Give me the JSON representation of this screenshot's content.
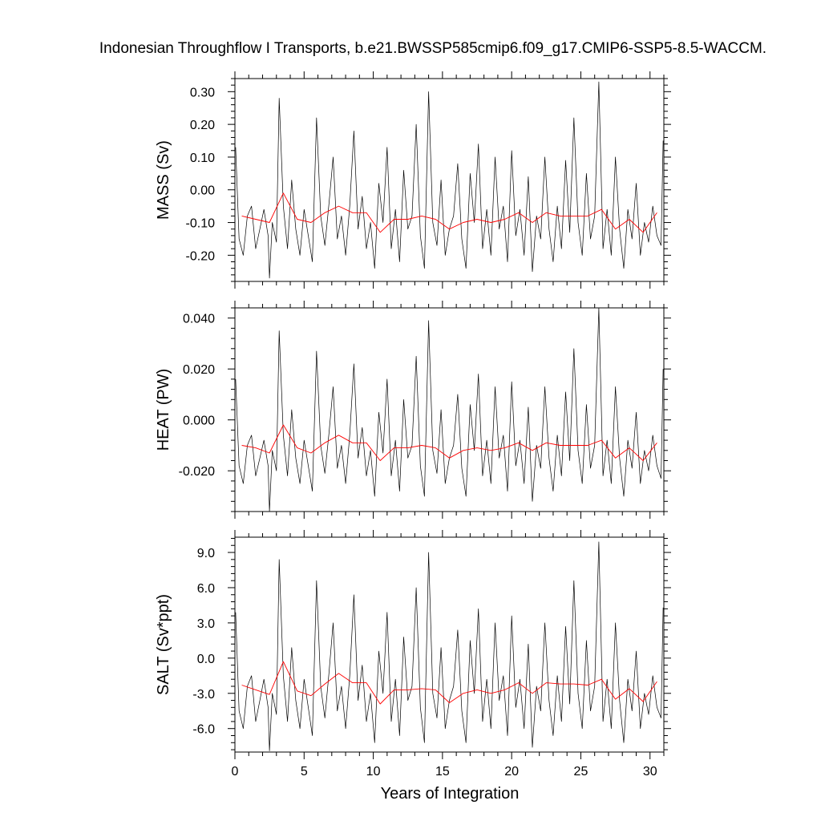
{
  "title": "Indonesian Throughflow I Transports, b.e21.BWSSP585cmip6.f09_g17.CMIP6-SSP5-8.5-WACCM.",
  "xlabel": "Years of Integration",
  "colors": {
    "monthly": "#000000",
    "annual": "#ff0000"
  },
  "chart_data": [
    {
      "type": "line",
      "ylabel": "MASS (Sv)",
      "xlim": [
        0,
        31
      ],
      "ylim": [
        -0.28,
        0.34
      ],
      "xticks": [
        0,
        5,
        10,
        15,
        20,
        25,
        30
      ],
      "yticks": [
        -0.2,
        -0.1,
        0.0,
        0.1,
        0.2,
        0.3
      ],
      "ytick_labels": [
        "-0.20",
        "-0.10",
        "0.00",
        "0.10",
        "0.20",
        "0.30"
      ],
      "xtick_labels": [
        "",
        "",
        "",
        "",
        "",
        "",
        ""
      ],
      "series": [
        {
          "kind": "monthly",
          "x": [
            0.05,
            0.3,
            0.6,
            0.9,
            1.2,
            1.5,
            1.8,
            2.1,
            2.4,
            2.5,
            2.7,
            3.0,
            3.2,
            3.5,
            3.8,
            4.1,
            4.4,
            4.7,
            5.0,
            5.3,
            5.6,
            5.9,
            6.2,
            6.5,
            6.8,
            7.1,
            7.4,
            7.7,
            8.0,
            8.3,
            8.6,
            8.9,
            9.2,
            9.5,
            9.8,
            10.1,
            10.4,
            10.7,
            11.0,
            11.3,
            11.6,
            11.9,
            12.2,
            12.5,
            12.8,
            13.1,
            13.4,
            13.7,
            14.0,
            14.3,
            14.6,
            14.9,
            15.2,
            15.5,
            15.8,
            16.1,
            16.4,
            16.7,
            17.0,
            17.3,
            17.6,
            17.9,
            18.2,
            18.5,
            18.8,
            19.1,
            19.4,
            19.7,
            20.0,
            20.3,
            20.6,
            20.9,
            21.2,
            21.5,
            21.8,
            22.1,
            22.4,
            22.7,
            23.0,
            23.3,
            23.6,
            23.9,
            24.2,
            24.5,
            24.8,
            25.1,
            25.4,
            25.7,
            26.0,
            26.3,
            26.6,
            26.9,
            27.2,
            27.5,
            27.8,
            28.1,
            28.4,
            28.7,
            29.0,
            29.3,
            29.6,
            29.9,
            30.2,
            30.5,
            30.8,
            30.95
          ],
          "y": [
            0.13,
            -0.15,
            -0.2,
            -0.08,
            -0.05,
            -0.18,
            -0.12,
            -0.06,
            -0.14,
            -0.27,
            -0.1,
            -0.16,
            0.28,
            -0.05,
            -0.18,
            0.03,
            -0.12,
            -0.2,
            -0.06,
            -0.14,
            -0.22,
            0.22,
            -0.08,
            -0.17,
            -0.04,
            0.1,
            -0.15,
            -0.08,
            -0.2,
            -0.05,
            0.18,
            -0.12,
            -0.02,
            -0.18,
            -0.1,
            -0.24,
            0.02,
            -0.1,
            0.13,
            -0.18,
            -0.06,
            -0.22,
            0.06,
            -0.12,
            -0.08,
            0.2,
            -0.14,
            -0.24,
            0.3,
            -0.1,
            -0.17,
            0.03,
            -0.2,
            -0.12,
            -0.08,
            0.08,
            -0.15,
            -0.24,
            0.05,
            -0.1,
            0.14,
            -0.18,
            -0.06,
            -0.2,
            0.1,
            -0.12,
            -0.05,
            -0.22,
            0.12,
            -0.14,
            -0.06,
            -0.2,
            0.04,
            -0.25,
            -0.08,
            -0.15,
            0.1,
            -0.12,
            -0.22,
            -0.05,
            -0.18,
            0.09,
            -0.13,
            0.22,
            -0.1,
            -0.2,
            0.05,
            -0.15,
            -0.08,
            0.33,
            -0.18,
            -0.06,
            -0.2,
            0.1,
            -0.12,
            -0.24,
            -0.06,
            -0.15,
            0.02,
            -0.2,
            -0.1,
            -0.16,
            -0.05,
            -0.14,
            -0.17,
            0.15
          ]
        },
        {
          "kind": "annual",
          "x": [
            0.5,
            1.5,
            2.5,
            3.5,
            4.5,
            5.5,
            6.5,
            7.5,
            8.5,
            9.5,
            10.5,
            11.5,
            12.5,
            13.5,
            14.5,
            15.5,
            16.5,
            17.5,
            18.5,
            19.5,
            20.5,
            21.5,
            22.5,
            23.5,
            24.5,
            25.5,
            26.5,
            27.5,
            28.5,
            29.5,
            30.5
          ],
          "y": [
            -0.08,
            -0.09,
            -0.1,
            -0.01,
            -0.09,
            -0.1,
            -0.07,
            -0.05,
            -0.07,
            -0.07,
            -0.13,
            -0.09,
            -0.09,
            -0.08,
            -0.09,
            -0.12,
            -0.1,
            -0.09,
            -0.1,
            -0.09,
            -0.07,
            -0.1,
            -0.07,
            -0.08,
            -0.08,
            -0.08,
            -0.06,
            -0.12,
            -0.09,
            -0.13,
            -0.07
          ]
        }
      ]
    },
    {
      "type": "line",
      "ylabel": "HEAT (PW)",
      "xlim": [
        0,
        31
      ],
      "ylim": [
        -0.036,
        0.044
      ],
      "xticks": [
        0,
        5,
        10,
        15,
        20,
        25,
        30
      ],
      "yticks": [
        -0.02,
        0.0,
        0.02,
        0.04
      ],
      "ytick_labels": [
        "-0.020",
        "0.000",
        "0.020",
        "0.040"
      ],
      "xtick_labels": [
        "",
        "",
        "",
        "",
        "",
        "",
        ""
      ],
      "series": [
        {
          "kind": "monthly",
          "x": [
            0.05,
            0.3,
            0.6,
            0.9,
            1.2,
            1.5,
            1.8,
            2.1,
            2.4,
            2.5,
            2.7,
            3.0,
            3.2,
            3.5,
            3.8,
            4.1,
            4.4,
            4.7,
            5.0,
            5.3,
            5.6,
            5.9,
            6.2,
            6.5,
            6.8,
            7.1,
            7.4,
            7.7,
            8.0,
            8.3,
            8.6,
            8.9,
            9.2,
            9.5,
            9.8,
            10.1,
            10.4,
            10.7,
            11.0,
            11.3,
            11.6,
            11.9,
            12.2,
            12.5,
            12.8,
            13.1,
            13.4,
            13.7,
            14.0,
            14.3,
            14.6,
            14.9,
            15.2,
            15.5,
            15.8,
            16.1,
            16.4,
            16.7,
            17.0,
            17.3,
            17.6,
            17.9,
            18.2,
            18.5,
            18.8,
            19.1,
            19.4,
            19.7,
            20.0,
            20.3,
            20.6,
            20.9,
            21.2,
            21.5,
            21.8,
            22.1,
            22.4,
            22.7,
            23.0,
            23.3,
            23.6,
            23.9,
            24.2,
            24.5,
            24.8,
            25.1,
            25.4,
            25.7,
            26.0,
            26.3,
            26.6,
            26.9,
            27.2,
            27.5,
            27.8,
            28.1,
            28.4,
            28.7,
            29.0,
            29.3,
            29.6,
            29.9,
            30.2,
            30.5,
            30.8,
            30.95
          ],
          "y": [
            0.016,
            -0.018,
            -0.025,
            -0.01,
            -0.006,
            -0.022,
            -0.015,
            -0.008,
            -0.018,
            -0.036,
            -0.012,
            -0.02,
            0.035,
            -0.006,
            -0.022,
            0.004,
            -0.015,
            -0.025,
            -0.008,
            -0.018,
            -0.028,
            0.027,
            -0.01,
            -0.021,
            -0.005,
            0.013,
            -0.019,
            -0.01,
            -0.025,
            -0.006,
            0.022,
            -0.015,
            -0.003,
            -0.022,
            -0.012,
            -0.03,
            0.003,
            -0.013,
            0.016,
            -0.022,
            -0.008,
            -0.028,
            0.008,
            -0.015,
            -0.01,
            0.025,
            -0.018,
            -0.03,
            0.039,
            -0.012,
            -0.021,
            0.004,
            -0.025,
            -0.015,
            -0.01,
            0.01,
            -0.019,
            -0.03,
            0.006,
            -0.012,
            0.018,
            -0.022,
            -0.008,
            -0.025,
            0.013,
            -0.015,
            -0.006,
            -0.028,
            0.015,
            -0.018,
            -0.008,
            -0.025,
            0.005,
            -0.032,
            -0.01,
            -0.019,
            0.013,
            -0.015,
            -0.028,
            -0.006,
            -0.022,
            0.011,
            -0.016,
            0.028,
            -0.012,
            -0.025,
            0.006,
            -0.019,
            -0.01,
            0.044,
            -0.022,
            -0.008,
            -0.025,
            0.013,
            -0.015,
            -0.03,
            -0.008,
            -0.019,
            0.003,
            -0.025,
            -0.012,
            -0.02,
            -0.006,
            -0.018,
            -0.023,
            0.02
          ]
        },
        {
          "kind": "annual",
          "x": [
            0.5,
            1.5,
            2.5,
            3.5,
            4.5,
            5.5,
            6.5,
            7.5,
            8.5,
            9.5,
            10.5,
            11.5,
            12.5,
            13.5,
            14.5,
            15.5,
            16.5,
            17.5,
            18.5,
            19.5,
            20.5,
            21.5,
            22.5,
            23.5,
            24.5,
            25.5,
            26.5,
            27.5,
            28.5,
            29.5,
            30.5
          ],
          "y": [
            -0.01,
            -0.011,
            -0.013,
            -0.002,
            -0.011,
            -0.013,
            -0.009,
            -0.006,
            -0.009,
            -0.009,
            -0.016,
            -0.011,
            -0.011,
            -0.01,
            -0.011,
            -0.015,
            -0.012,
            -0.011,
            -0.012,
            -0.011,
            -0.009,
            -0.012,
            -0.009,
            -0.01,
            -0.01,
            -0.01,
            -0.008,
            -0.015,
            -0.011,
            -0.016,
            -0.009
          ]
        }
      ]
    },
    {
      "type": "line",
      "ylabel": "SALT (Sv*ppt)",
      "xlim": [
        0,
        31
      ],
      "ylim": [
        -8.0,
        10.3
      ],
      "xticks": [
        0,
        5,
        10,
        15,
        20,
        25,
        30
      ],
      "yticks": [
        -6.0,
        -3.0,
        0.0,
        3.0,
        6.0,
        9.0
      ],
      "ytick_labels": [
        "-6.0",
        "-3.0",
        "0.0",
        "3.0",
        "6.0",
        "9.0"
      ],
      "xtick_labels": [
        "0",
        "5",
        "10",
        "15",
        "20",
        "25",
        "30"
      ],
      "series": [
        {
          "kind": "monthly",
          "x": [
            0.05,
            0.3,
            0.6,
            0.9,
            1.2,
            1.5,
            1.8,
            2.1,
            2.4,
            2.5,
            2.7,
            3.0,
            3.2,
            3.5,
            3.8,
            4.1,
            4.4,
            4.7,
            5.0,
            5.3,
            5.6,
            5.9,
            6.2,
            6.5,
            6.8,
            7.1,
            7.4,
            7.7,
            8.0,
            8.3,
            8.6,
            8.9,
            9.2,
            9.5,
            9.8,
            10.1,
            10.4,
            10.7,
            11.0,
            11.3,
            11.6,
            11.9,
            12.2,
            12.5,
            12.8,
            13.1,
            13.4,
            13.7,
            14.0,
            14.3,
            14.6,
            14.9,
            15.2,
            15.5,
            15.8,
            16.1,
            16.4,
            16.7,
            17.0,
            17.3,
            17.6,
            17.9,
            18.2,
            18.5,
            18.8,
            19.1,
            19.4,
            19.7,
            20.0,
            20.3,
            20.6,
            20.9,
            21.2,
            21.5,
            21.8,
            22.1,
            22.4,
            22.7,
            23.0,
            23.3,
            23.6,
            23.9,
            24.2,
            24.5,
            24.8,
            25.1,
            25.4,
            25.7,
            26.0,
            26.3,
            26.6,
            26.9,
            27.2,
            27.5,
            27.8,
            28.1,
            28.4,
            28.7,
            29.0,
            29.3,
            29.6,
            29.9,
            30.2,
            30.5,
            30.8,
            30.95
          ],
          "y": [
            3.9,
            -4.5,
            -6.0,
            -2.4,
            -1.5,
            -5.4,
            -3.6,
            -1.8,
            -4.2,
            -7.9,
            -3.0,
            -4.8,
            8.4,
            -1.5,
            -5.4,
            0.9,
            -3.6,
            -6.0,
            -1.8,
            -4.2,
            -6.6,
            6.6,
            -2.4,
            -5.1,
            -1.2,
            3.0,
            -4.5,
            -2.4,
            -6.0,
            -1.5,
            5.4,
            -3.6,
            -0.6,
            -5.4,
            -3.0,
            -7.2,
            0.6,
            -3.0,
            3.9,
            -5.4,
            -1.8,
            -6.6,
            1.8,
            -3.6,
            -2.4,
            6.0,
            -4.2,
            -7.2,
            9.0,
            -3.0,
            -5.1,
            0.9,
            -6.0,
            -3.6,
            -2.4,
            2.4,
            -4.5,
            -7.2,
            1.5,
            -3.0,
            4.2,
            -5.4,
            -1.8,
            -6.0,
            3.0,
            -3.6,
            -1.5,
            -6.6,
            3.6,
            -4.2,
            -1.8,
            -6.0,
            1.2,
            -7.6,
            -2.4,
            -4.5,
            3.0,
            -3.6,
            -6.6,
            -1.5,
            -5.4,
            2.7,
            -3.9,
            6.6,
            -3.0,
            -6.0,
            1.5,
            -4.5,
            -2.4,
            9.9,
            -5.4,
            -1.8,
            -6.0,
            3.0,
            -3.6,
            -7.2,
            -1.8,
            -4.5,
            0.6,
            -6.0,
            -3.0,
            -4.8,
            -1.5,
            -4.2,
            -5.1,
            4.3
          ]
        },
        {
          "kind": "annual",
          "x": [
            0.5,
            1.5,
            2.5,
            3.5,
            4.5,
            5.5,
            6.5,
            7.5,
            8.5,
            9.5,
            10.5,
            11.5,
            12.5,
            13.5,
            14.5,
            15.5,
            16.5,
            17.5,
            18.5,
            19.5,
            20.5,
            21.5,
            22.5,
            23.5,
            24.5,
            25.5,
            26.5,
            27.5,
            28.5,
            29.5,
            30.5
          ],
          "y": [
            -2.3,
            -2.7,
            -3.1,
            -0.3,
            -2.8,
            -3.2,
            -2.2,
            -1.3,
            -2.1,
            -2.1,
            -3.9,
            -2.7,
            -2.7,
            -2.6,
            -2.7,
            -3.8,
            -3.0,
            -2.7,
            -3.0,
            -2.7,
            -2.1,
            -3.0,
            -2.1,
            -2.2,
            -2.2,
            -2.3,
            -1.8,
            -3.5,
            -2.6,
            -3.7,
            -2.0
          ]
        }
      ]
    }
  ]
}
